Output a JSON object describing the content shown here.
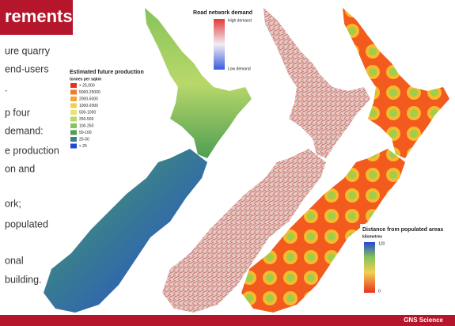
{
  "header": {
    "title": "rements"
  },
  "bullets": [
    "ure quarry",
    "end-users",
    ".",
    "p four",
    "demand:",
    "e production",
    "on and",
    "ork;",
    "populated",
    "onal",
    "building."
  ],
  "production_legend": {
    "title": "Estimated future production",
    "unit": "tonnes per sqkm",
    "items": [
      {
        "label": "> 25,000",
        "color": "#e8321e"
      },
      {
        "label": "5000-25000",
        "color": "#f07a2a"
      },
      {
        "label": "2000-5000",
        "color": "#f4a53a"
      },
      {
        "label": "1000-2000",
        "color": "#f2cf52"
      },
      {
        "label": "500-1000",
        "color": "#e6e37c"
      },
      {
        "label": "250-500",
        "color": "#b9d86a"
      },
      {
        "label": "100-250",
        "color": "#86c35a"
      },
      {
        "label": "50-100",
        "color": "#4f9e52"
      },
      {
        "label": "25-50",
        "color": "#3a7f8e"
      },
      {
        "label": "< 25",
        "color": "#2448d4"
      }
    ]
  },
  "road_legend": {
    "title": "Road network demand",
    "high": "High demand",
    "low": "Low demand"
  },
  "distance_legend": {
    "title": "Distance from populated areas",
    "unit": "kilometres",
    "max": "120",
    "min": "0"
  },
  "footer": {
    "text": "GNS Science"
  }
}
